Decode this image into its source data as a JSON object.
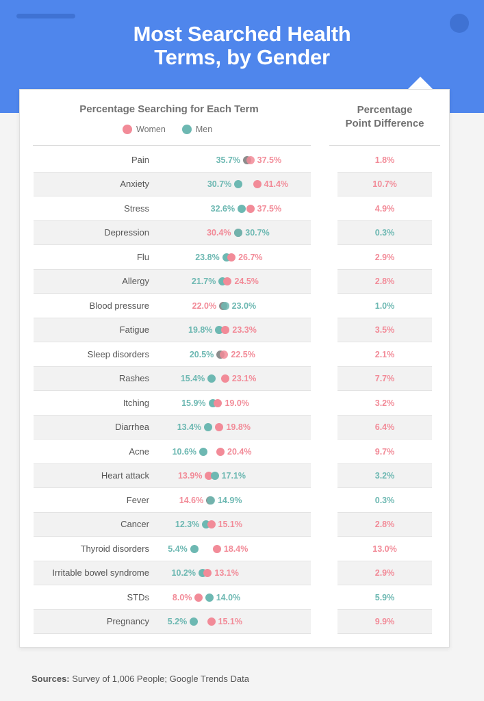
{
  "title_line1": "Most Searched Health",
  "title_line2": "Terms, by Gender",
  "left_heading": "Percentage Searching for Each Term",
  "right_heading_line1": "Percentage",
  "right_heading_line2": "Point Difference",
  "footer_label": "Sources:",
  "footer_text": "Survey of 1,006 People; Google Trends Data",
  "colors": {
    "women": "#f28b98",
    "men": "#6db8b2",
    "overlap": "#8c8c8c",
    "header": "#4f86ec"
  },
  "chart_data": {
    "type": "scatter",
    "title": "Most Searched Health Terms, by Gender",
    "legend": [
      "Women",
      "Men"
    ],
    "legend_position": "top",
    "series": [
      {
        "name": "Women",
        "values": [
          37.5,
          41.4,
          37.5,
          30.4,
          26.7,
          24.5,
          22.0,
          23.3,
          22.5,
          23.1,
          19.0,
          19.8,
          20.4,
          13.9,
          14.6,
          15.1,
          18.4,
          13.1,
          8.0,
          15.1
        ]
      },
      {
        "name": "Men",
        "values": [
          35.7,
          30.7,
          32.6,
          30.7,
          23.8,
          21.7,
          23.0,
          19.8,
          20.5,
          15.4,
          15.9,
          13.4,
          10.6,
          17.1,
          14.9,
          12.3,
          5.4,
          10.2,
          14.0,
          5.2
        ]
      }
    ],
    "rows": [
      {
        "term": "Pain",
        "women": "37.5%",
        "men": "35.7%",
        "diff": "1.8%"
      },
      {
        "term": "Anxiety",
        "women": "41.4%",
        "men": "30.7%",
        "diff": "10.7%"
      },
      {
        "term": "Stress",
        "women": "37.5%",
        "men": "32.6%",
        "diff": "4.9%"
      },
      {
        "term": "Depression",
        "women": "30.4%",
        "men": "30.7%",
        "diff": "0.3%"
      },
      {
        "term": "Flu",
        "women": "26.7%",
        "men": "23.8%",
        "diff": "2.9%"
      },
      {
        "term": "Allergy",
        "women": "24.5%",
        "men": "21.7%",
        "diff": "2.8%"
      },
      {
        "term": "Blood pressure",
        "women": "22.0%",
        "men": "23.0%",
        "diff": "1.0%"
      },
      {
        "term": "Fatigue",
        "women": "23.3%",
        "men": "19.8%",
        "diff": "3.5%"
      },
      {
        "term": "Sleep disorders",
        "women": "22.5%",
        "men": "20.5%",
        "diff": "2.1%"
      },
      {
        "term": "Rashes",
        "women": "23.1%",
        "men": "15.4%",
        "diff": "7.7%"
      },
      {
        "term": "Itching",
        "women": "19.0%",
        "men": "15.9%",
        "diff": "3.2%"
      },
      {
        "term": "Diarrhea",
        "women": "19.8%",
        "men": "13.4%",
        "diff": "6.4%"
      },
      {
        "term": "Acne",
        "women": "20.4%",
        "men": "10.6%",
        "diff": "9.7%"
      },
      {
        "term": "Heart attack",
        "women": "13.9%",
        "men": "17.1%",
        "diff": "3.2%"
      },
      {
        "term": "Fever",
        "women": "14.6%",
        "men": "14.9%",
        "diff": "0.3%"
      },
      {
        "term": "Cancer",
        "women": "15.1%",
        "men": "12.3%",
        "diff": "2.8%"
      },
      {
        "term": "Thyroid disorders",
        "women": "18.4%",
        "men": "5.4%",
        "diff": "13.0%"
      },
      {
        "term": "Irritable bowel syndrome",
        "women": "13.1%",
        "men": "10.2%",
        "diff": "2.9%"
      },
      {
        "term": "STDs",
        "women": "8.0%",
        "men": "14.0%",
        "diff": "5.9%"
      },
      {
        "term": "Pregnancy",
        "women": "15.1%",
        "men": "5.2%",
        "diff": "9.9%"
      }
    ]
  }
}
